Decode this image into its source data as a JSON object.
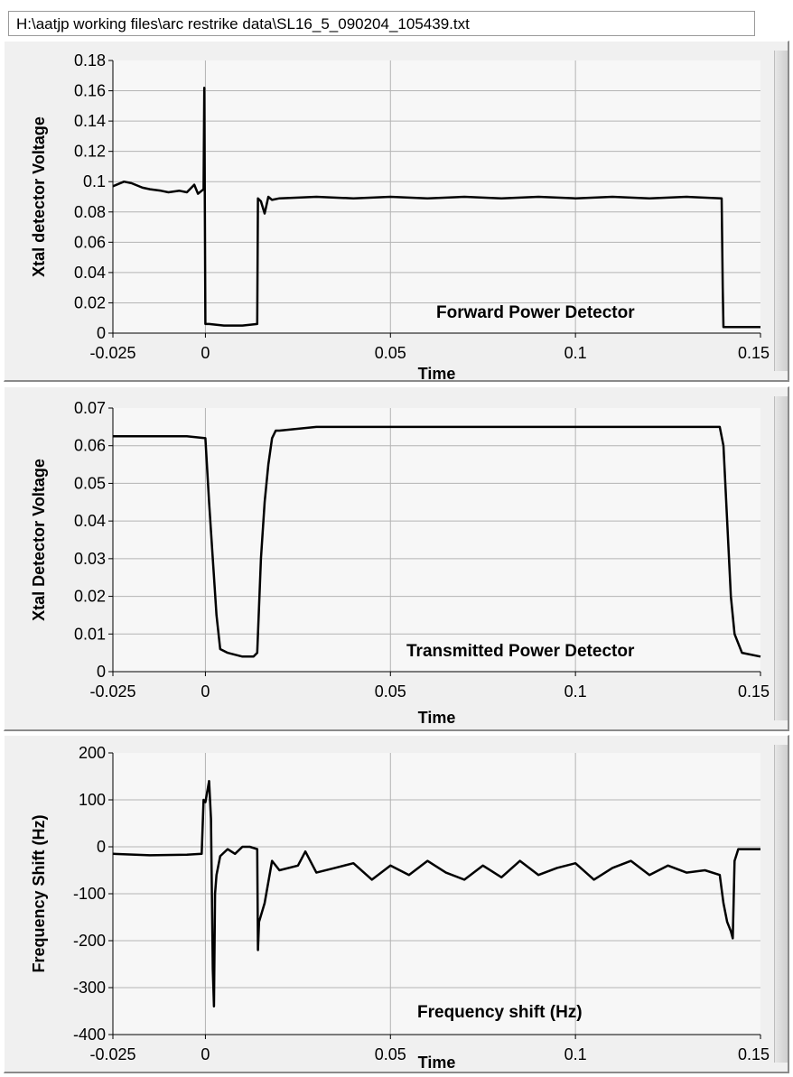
{
  "file_path": "H:\\aatjp working files\\arc restrike data\\SL16_5_090204_105439.txt",
  "colors": {
    "plot_bg": "#f7f7f7",
    "grid": "#b4b4b4",
    "trace": "#000000",
    "axis": "#000000"
  },
  "chart_data": [
    {
      "type": "line",
      "title": "",
      "xlabel": "Time",
      "ylabel": "Xtal detector Voltage",
      "annotation": "Forward Power Detector",
      "xlim": [
        -0.025,
        0.15
      ],
      "ylim": [
        0,
        0.18
      ],
      "grid": true,
      "x_ticks": [
        -0.025,
        0,
        0.05,
        0.1,
        0.15
      ],
      "x_tick_labels": [
        "-0.025",
        "0",
        "0.05",
        "0.1",
        "0.15"
      ],
      "y_ticks": [
        0,
        0.02,
        0.04,
        0.06,
        0.08,
        0.1,
        0.12,
        0.14,
        0.16,
        0.18
      ],
      "y_tick_labels": [
        "0",
        "0.02",
        "0.04",
        "0.06",
        "0.08",
        "0.1",
        "0.12",
        "0.14",
        "0.16",
        "0.18"
      ],
      "series": [
        {
          "x": [
            -0.025,
            -0.022,
            -0.02,
            -0.017,
            -0.015,
            -0.012,
            -0.01,
            -0.007,
            -0.005,
            -0.003,
            -0.002,
            -0.001,
            -0.0005,
            -0.0003,
            -0.0002,
            0,
            0.001,
            0.005,
            0.01,
            0.014,
            0.0142,
            0.015,
            0.016,
            0.017,
            0.018,
            0.02,
            0.03,
            0.04,
            0.05,
            0.06,
            0.07,
            0.08,
            0.09,
            0.1,
            0.11,
            0.12,
            0.13,
            0.1395,
            0.1398,
            0.14,
            0.145,
            0.15
          ],
          "y": [
            0.097,
            0.1,
            0.099,
            0.096,
            0.095,
            0.094,
            0.093,
            0.094,
            0.093,
            0.098,
            0.092,
            0.094,
            0.095,
            0.162,
            0.11,
            0.006,
            0.006,
            0.005,
            0.005,
            0.006,
            0.089,
            0.087,
            0.079,
            0.09,
            0.088,
            0.089,
            0.09,
            0.089,
            0.09,
            0.089,
            0.09,
            0.089,
            0.09,
            0.089,
            0.09,
            0.089,
            0.09,
            0.089,
            0.03,
            0.004,
            0.004,
            0.004
          ]
        }
      ]
    },
    {
      "type": "line",
      "title": "",
      "xlabel": "Time",
      "ylabel": "Xtal Detector Voltage",
      "annotation": "Transmitted Power Detector",
      "xlim": [
        -0.025,
        0.15
      ],
      "ylim": [
        0,
        0.07
      ],
      "grid": true,
      "x_ticks": [
        -0.025,
        0,
        0.05,
        0.1,
        0.15
      ],
      "x_tick_labels": [
        "-0.025",
        "0",
        "0.05",
        "0.1",
        "0.15"
      ],
      "y_ticks": [
        0,
        0.01,
        0.02,
        0.03,
        0.04,
        0.05,
        0.06,
        0.07
      ],
      "y_tick_labels": [
        "0",
        "0.01",
        "0.02",
        "0.03",
        "0.04",
        "0.05",
        "0.06",
        "0.07"
      ],
      "series": [
        {
          "x": [
            -0.025,
            -0.015,
            -0.005,
            0,
            0.001,
            0.002,
            0.003,
            0.004,
            0.006,
            0.01,
            0.013,
            0.014,
            0.015,
            0.016,
            0.017,
            0.018,
            0.019,
            0.02,
            0.03,
            0.05,
            0.07,
            0.09,
            0.11,
            0.13,
            0.139,
            0.14,
            0.141,
            0.142,
            0.143,
            0.145,
            0.15
          ],
          "y": [
            0.0625,
            0.0625,
            0.0625,
            0.062,
            0.045,
            0.03,
            0.015,
            0.006,
            0.005,
            0.004,
            0.004,
            0.005,
            0.03,
            0.045,
            0.055,
            0.062,
            0.064,
            0.064,
            0.065,
            0.065,
            0.065,
            0.065,
            0.065,
            0.065,
            0.065,
            0.06,
            0.04,
            0.02,
            0.01,
            0.005,
            0.004
          ]
        }
      ]
    },
    {
      "type": "line",
      "title": "",
      "xlabel": "Time",
      "ylabel": "Frequency Shift (Hz)",
      "annotation": "Frequency shift (Hz)",
      "xlim": [
        -0.025,
        0.15
      ],
      "ylim": [
        -400,
        200
      ],
      "grid": true,
      "x_ticks": [
        -0.025,
        0,
        0.05,
        0.1,
        0.15
      ],
      "x_tick_labels": [
        "-0.025",
        "0",
        "0.05",
        "0.1",
        "0.15"
      ],
      "y_ticks": [
        -400,
        -300,
        -200,
        -100,
        0,
        100,
        200
      ],
      "y_tick_labels": [
        "-400",
        "-300",
        "-200",
        "-100",
        "0",
        "100",
        "200"
      ],
      "series": [
        {
          "x": [
            -0.025,
            -0.015,
            -0.005,
            -0.001,
            -0.0005,
            0,
            0.001,
            0.0015,
            0.002,
            0.0023,
            0.0026,
            0.003,
            0.004,
            0.006,
            0.008,
            0.01,
            0.012,
            0.014,
            0.0142,
            0.0145,
            0.016,
            0.018,
            0.02,
            0.025,
            0.027,
            0.03,
            0.035,
            0.04,
            0.045,
            0.05,
            0.055,
            0.06,
            0.065,
            0.07,
            0.075,
            0.08,
            0.085,
            0.09,
            0.095,
            0.1,
            0.105,
            0.11,
            0.115,
            0.12,
            0.125,
            0.13,
            0.135,
            0.139,
            0.14,
            0.141,
            0.142,
            0.1425,
            0.143,
            0.144,
            0.145,
            0.15
          ],
          "y": [
            -15,
            -18,
            -17,
            -15,
            100,
            95,
            140,
            60,
            -260,
            -340,
            -100,
            -60,
            -20,
            -5,
            -15,
            0,
            0,
            -5,
            -220,
            -160,
            -120,
            -30,
            -50,
            -40,
            -10,
            -55,
            -45,
            -35,
            -70,
            -40,
            -60,
            -30,
            -55,
            -70,
            -40,
            -65,
            -30,
            -60,
            -45,
            -35,
            -70,
            -45,
            -30,
            -60,
            -40,
            -55,
            -50,
            -60,
            -120,
            -160,
            -180,
            -195,
            -30,
            -5,
            -5,
            -5
          ]
        }
      ]
    }
  ]
}
